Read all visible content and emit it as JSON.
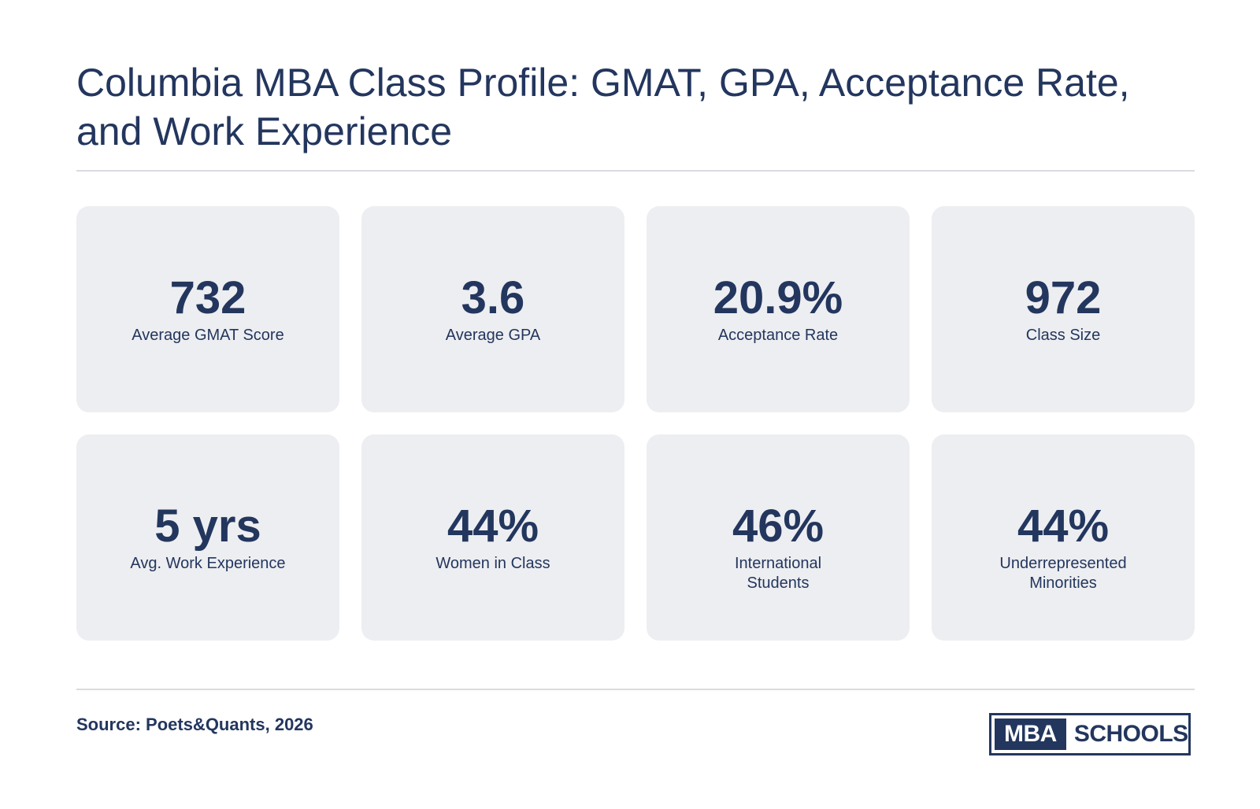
{
  "title": "Columbia MBA Class Profile: GMAT, GPA, Acceptance Rate, and Work Experience",
  "stats": [
    {
      "value": "732",
      "label": "Average GMAT Score"
    },
    {
      "value": "3.6",
      "label": "Average GPA"
    },
    {
      "value": "20.9%",
      "label": "Acceptance Rate"
    },
    {
      "value": "972",
      "label": "Class Size"
    },
    {
      "value": "5 yrs",
      "label": "Avg. Work Experience"
    },
    {
      "value": "44%",
      "label": "Women in Class"
    },
    {
      "value": "46%",
      "label": "International\nStudents"
    },
    {
      "value": "44%",
      "label": "Underrepresented\nMinorities"
    }
  ],
  "source": "Source: Poets&Quants, 2026",
  "logo": {
    "left_text": "MBA",
    "right_text": "SCHOOLS"
  },
  "colors": {
    "text": "#23365e",
    "card_background": "#edeef1",
    "divider": "#d9dbe0"
  }
}
